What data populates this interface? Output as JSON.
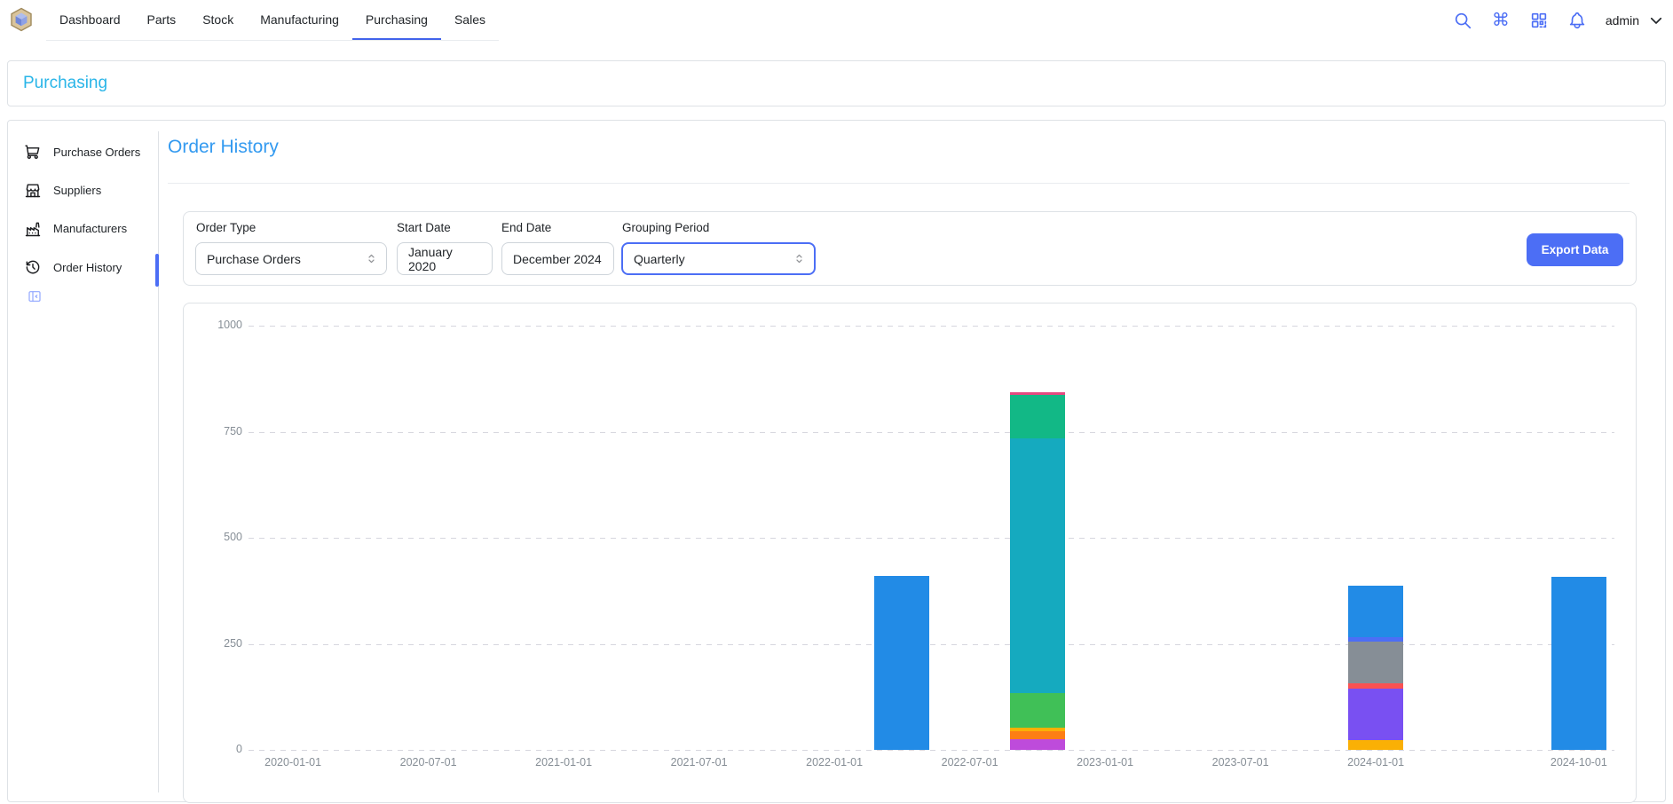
{
  "header": {
    "nav": {
      "items": [
        {
          "label": "Dashboard",
          "active": false
        },
        {
          "label": "Parts",
          "active": false
        },
        {
          "label": "Stock",
          "active": false
        },
        {
          "label": "Manufacturing",
          "active": false
        },
        {
          "label": "Purchasing",
          "active": true
        },
        {
          "label": "Sales",
          "active": false
        }
      ],
      "active_underline_color": "#4263eb"
    },
    "icons": {
      "search": "search-icon",
      "command": "⌘",
      "qr": "qr-code-icon",
      "bell": "notification-bell-icon"
    },
    "user": {
      "name": "admin"
    }
  },
  "breadcrumb": {
    "label": "Purchasing",
    "color": "#29b5e8"
  },
  "sidebar": {
    "items": [
      {
        "label": "Purchase Orders",
        "icon": "shopping-cart",
        "active": false
      },
      {
        "label": "Suppliers",
        "icon": "store",
        "active": false
      },
      {
        "label": "Manufacturers",
        "icon": "factory",
        "active": false
      },
      {
        "label": "Order History",
        "icon": "history-clock",
        "active": true
      }
    ],
    "active_indicator_color": "#4c6ef5",
    "collapse_icon": "sidebar-collapse-icon"
  },
  "main": {
    "title": {
      "label": "Order History",
      "color": "#339af0"
    },
    "filters": {
      "order_type": {
        "label": "Order Type",
        "value": "Purchase Orders"
      },
      "start_date": {
        "label": "Start Date",
        "value": "January 2020"
      },
      "end_date": {
        "label": "End Date",
        "value": "December 2024"
      },
      "grouping_period": {
        "label": "Grouping Period",
        "value": "Quarterly",
        "focused": true
      },
      "export_button": {
        "label": "Export Data",
        "bg": "#4c6ef5"
      }
    }
  },
  "chart_data": {
    "type": "bar",
    "stacked": true,
    "title": "",
    "legend": "none",
    "grid": {
      "dashed": true,
      "color": "#d6d6de"
    },
    "y_axis": {
      "min": 0,
      "max": 1000,
      "ticks": [
        "0",
        "250",
        "500",
        "750",
        "1000"
      ]
    },
    "x_axis": {
      "type": "time",
      "unit": "quarter",
      "start": "2020-01-01",
      "quarter_count": 20,
      "tick_labels": [
        {
          "label": "2020-01-01",
          "index": 0
        },
        {
          "label": "2020-07-01",
          "index": 2
        },
        {
          "label": "2021-01-01",
          "index": 4
        },
        {
          "label": "2021-07-01",
          "index": 6
        },
        {
          "label": "2022-01-01",
          "index": 8
        },
        {
          "label": "2022-07-01",
          "index": 10
        },
        {
          "label": "2023-01-01",
          "index": 12
        },
        {
          "label": "2023-07-01",
          "index": 14
        },
        {
          "label": "2024-01-01",
          "index": 16
        },
        {
          "label": "2024-10-01",
          "index": 19
        }
      ]
    },
    "bars": [
      {
        "x": "2022-04-01",
        "index": 9,
        "total": 410,
        "segments": [
          {
            "name": "series-blue",
            "color": "#228be6",
            "value": 410
          }
        ]
      },
      {
        "x": "2022-10-01",
        "index": 11,
        "total": 843,
        "segments": [
          {
            "name": "series-grape",
            "color": "#be4bdb",
            "value": 25
          },
          {
            "name": "series-orange",
            "color": "#fd7e14",
            "value": 19
          },
          {
            "name": "series-yellow",
            "color": "#fab005",
            "value": 8
          },
          {
            "name": "series-green",
            "color": "#40c057",
            "value": 82
          },
          {
            "name": "series-cyan",
            "color": "#15aabf",
            "value": 600
          },
          {
            "name": "series-teal",
            "color": "#12b886",
            "value": 103
          },
          {
            "name": "series-pink",
            "color": "#e64980",
            "value": 6
          }
        ]
      },
      {
        "x": "2024-01-01",
        "index": 16,
        "total": 388,
        "segments": [
          {
            "name": "series-yellow",
            "color": "#fab005",
            "value": 23
          },
          {
            "name": "series-violet",
            "color": "#7950f2",
            "value": 121
          },
          {
            "name": "series-red",
            "color": "#fa5252",
            "value": 13
          },
          {
            "name": "series-gray",
            "color": "#868e96",
            "value": 98
          },
          {
            "name": "series-indigo",
            "color": "#4c6ef5",
            "value": 10
          },
          {
            "name": "series-blue",
            "color": "#228be6",
            "value": 123
          }
        ]
      },
      {
        "x": "2024-10-01",
        "index": 19,
        "total": 408,
        "segments": [
          {
            "name": "series-blue",
            "color": "#228be6",
            "value": 408
          }
        ]
      }
    ]
  }
}
